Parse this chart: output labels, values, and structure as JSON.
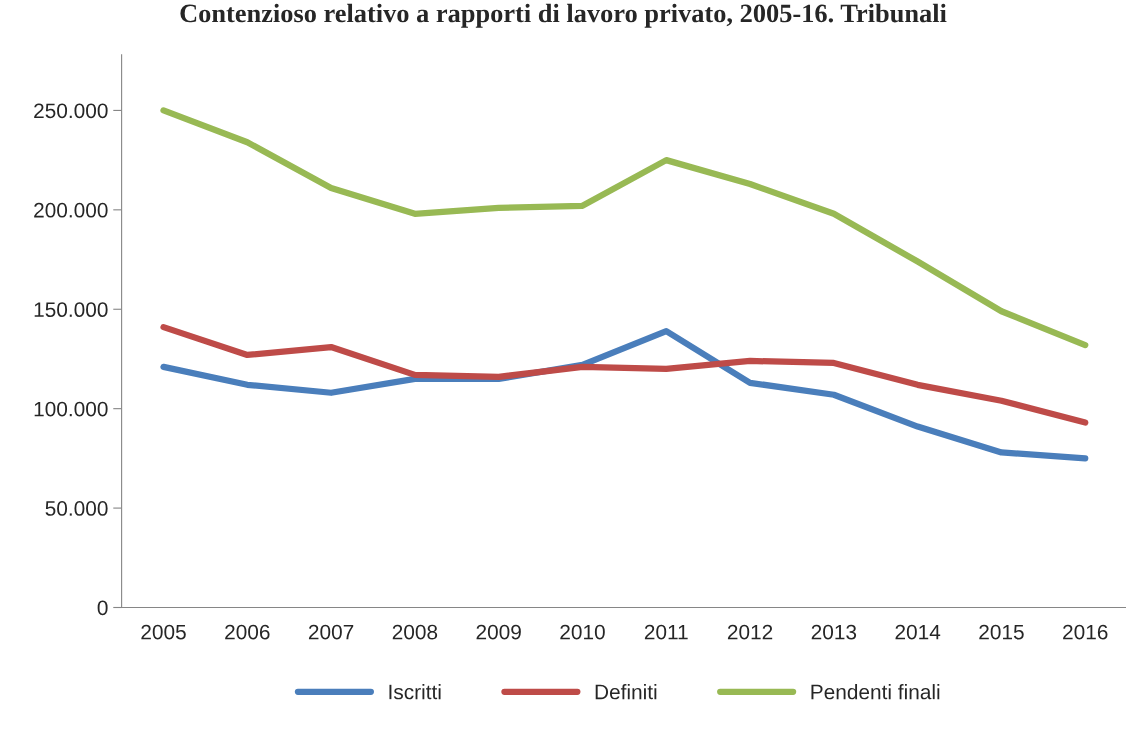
{
  "chart_data": {
    "type": "line",
    "title": "Contenzioso relativo a rapporti di lavoro privato, 2005-16. Tribunali",
    "categories": [
      "2005",
      "2006",
      "2007",
      "2008",
      "2009",
      "2010",
      "2011",
      "2012",
      "2013",
      "2014",
      "2015",
      "2016"
    ],
    "series": [
      {
        "name": "Iscritti",
        "color": "#4a7ebb",
        "values": [
          121000,
          112000,
          108000,
          115000,
          115000,
          122000,
          139000,
          113000,
          107000,
          91000,
          78000,
          75000
        ]
      },
      {
        "name": "Definiti",
        "color": "#be4b48",
        "values": [
          141000,
          127000,
          131000,
          117000,
          116000,
          121000,
          120000,
          124000,
          123000,
          112000,
          104000,
          93000
        ]
      },
      {
        "name": "Pendenti finali",
        "color": "#98b954",
        "values": [
          250000,
          234000,
          211000,
          198000,
          201000,
          202000,
          225000,
          213000,
          198000,
          174000,
          149000,
          132000
        ]
      }
    ],
    "ylim": [
      0,
      278000
    ],
    "yticks": [
      0,
      {
        "value": 50000,
        "label": "50.000"
      },
      {
        "value": 100000,
        "label": "100.000"
      },
      {
        "value": 150000,
        "label": "150.000"
      },
      {
        "value": 200000,
        "label": "200.000"
      },
      {
        "value": 250000,
        "label": "250.000"
      }
    ],
    "grid": false,
    "legend": "bottom",
    "marker": "none",
    "line_style": "solid"
  }
}
